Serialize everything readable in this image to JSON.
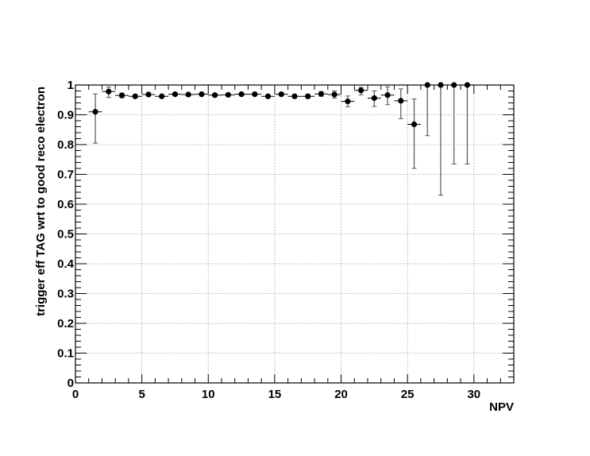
{
  "chart_data": {
    "type": "scatter",
    "title": "",
    "xlabel": "NPV",
    "ylabel": "trigger eff TAG wrt to good reco electron",
    "xlim": [
      0,
      33
    ],
    "ylim": [
      0,
      1
    ],
    "grid": true,
    "x_ticks": [
      0,
      5,
      10,
      15,
      20,
      25,
      30
    ],
    "x_tick_labels": [
      "0",
      "5",
      "10",
      "15",
      "20",
      "25",
      "30"
    ],
    "y_ticks": [
      0,
      0.1,
      0.2,
      0.3,
      0.4,
      0.5,
      0.6,
      0.7,
      0.8,
      0.9,
      1
    ],
    "y_tick_labels": [
      "0",
      "0.1",
      "0.2",
      "0.3",
      "0.4",
      "0.5",
      "0.6",
      "0.7",
      "0.8",
      "0.9",
      "1"
    ],
    "series": [
      {
        "x": [
          1.5,
          2.5,
          3.5,
          4.5,
          5.5,
          6.5,
          7.5,
          8.5,
          9.5,
          10.5,
          11.5,
          12.5,
          13.5,
          14.5,
          15.5,
          16.5,
          17.5,
          18.5,
          19.5,
          20.5,
          21.5,
          22.5,
          23.5,
          24.5,
          25.5,
          26.5,
          27.5,
          28.5,
          29.5
        ],
        "y": [
          0.91,
          0.978,
          0.965,
          0.962,
          0.968,
          0.962,
          0.969,
          0.968,
          0.969,
          0.966,
          0.967,
          0.969,
          0.969,
          0.962,
          0.969,
          0.962,
          0.962,
          0.97,
          0.968,
          0.945,
          0.982,
          0.956,
          0.966,
          0.947,
          0.868,
          1.0,
          1.0,
          1.0,
          1.0
        ],
        "y_err_low": [
          0.105,
          0.02,
          0.008,
          0.006,
          0.005,
          0.005,
          0.004,
          0.004,
          0.004,
          0.004,
          0.004,
          0.004,
          0.005,
          0.005,
          0.005,
          0.006,
          0.007,
          0.008,
          0.012,
          0.018,
          0.015,
          0.028,
          0.032,
          0.06,
          0.148,
          0.17,
          0.37,
          0.265,
          0.265
        ],
        "y_err_high": [
          0.06,
          0.015,
          0.008,
          0.006,
          0.005,
          0.005,
          0.004,
          0.004,
          0.004,
          0.004,
          0.004,
          0.004,
          0.005,
          0.005,
          0.005,
          0.006,
          0.007,
          0.008,
          0.012,
          0.018,
          0.01,
          0.024,
          0.028,
          0.04,
          0.085,
          0.0,
          0.0,
          0.0,
          0.0
        ],
        "x_err": 0.5
      }
    ]
  }
}
